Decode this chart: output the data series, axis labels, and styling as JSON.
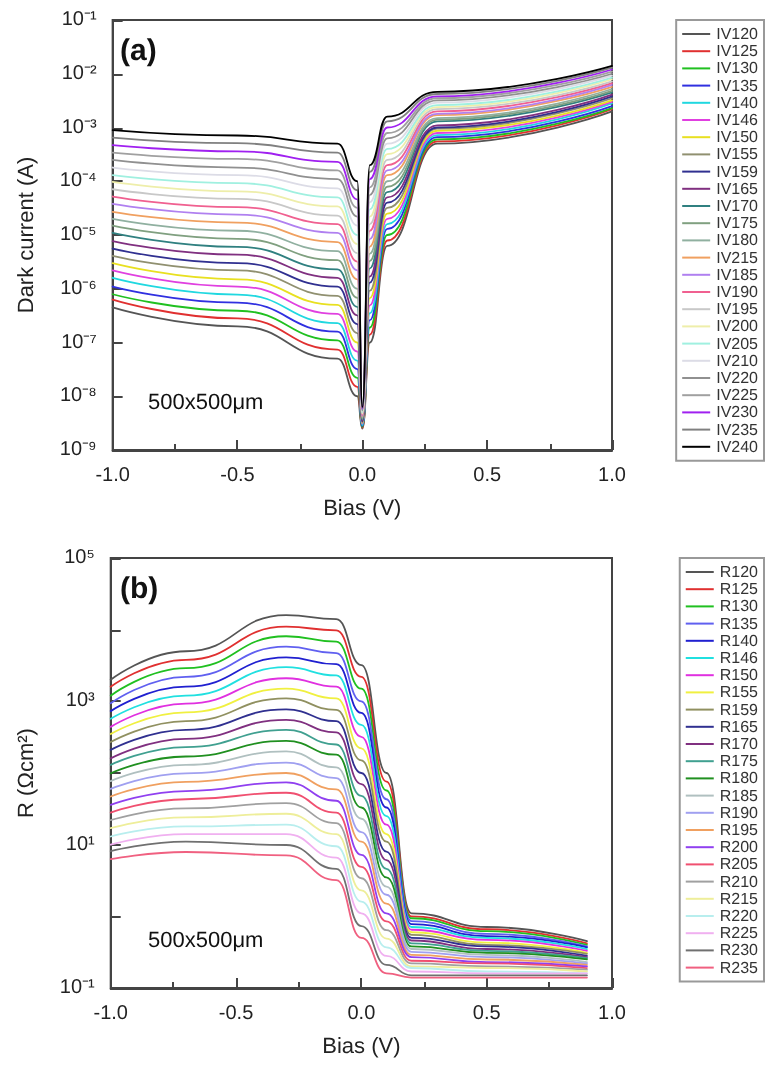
{
  "chart_data": [
    {
      "type": "line",
      "xlabel": "Bias (V)",
      "ylabel": "Dark current (A)",
      "annotations": [
        "(a)",
        "500x500μm"
      ],
      "log": "y",
      "grid": false,
      "legend": "right",
      "marker": "none",
      "line_style": "solid",
      "xlim": [
        -1,
        1
      ],
      "xticks": [
        {
          "value": -1,
          "label": "-1.0"
        },
        {
          "value": -0.5,
          "label": "-0.5"
        },
        {
          "value": 0,
          "label": "0.0"
        },
        {
          "value": 0.5,
          "label": "0.5"
        },
        {
          "value": 1,
          "label": "1.0"
        }
      ],
      "ylim": [
        1e-09,
        0.1
      ],
      "yticks": [
        {
          "value": 1e-09,
          "label": "10⁻⁹"
        },
        {
          "value": 1e-08,
          "label": "10⁻⁸"
        },
        {
          "value": 1e-07,
          "label": "10⁻⁷"
        },
        {
          "value": 1e-06,
          "label": "10⁻⁶"
        },
        {
          "value": 1e-05,
          "label": "10⁻⁵"
        },
        {
          "value": 0.0001,
          "label": "10⁻⁴"
        },
        {
          "value": 0.001,
          "label": "10⁻³"
        },
        {
          "value": 0.01,
          "label": "10⁻²"
        },
        {
          "value": 0.1,
          "label": "10⁻¹"
        }
      ],
      "x": [
        -1,
        -0.5,
        -0.1,
        -0.02,
        0,
        0.03,
        0.1,
        0.3,
        1.0
      ],
      "series": [
        {
          "name": "IV120",
          "color": "#555555",
          "values": [
            4.5e-07,
            2e-07,
            5e-08,
            1e-08,
            2.5e-09,
            1e-07,
            6.3e-06,
            0.0005,
            0.002
          ]
        },
        {
          "name": "IV125",
          "color": "#e03030",
          "values": [
            6.3e-07,
            2.8e-07,
            7.4e-08,
            1.5e-08,
            2.6e-09,
            1.4e-07,
            7.9e-06,
            0.00055,
            0.0022
          ]
        },
        {
          "name": "IV130",
          "color": "#20c020",
          "values": [
            7.9e-07,
            3.9e-07,
            1.1e-07,
            2.2e-08,
            2.7e-09,
            1.9e-07,
            1e-05,
            0.0006,
            0.0023
          ]
        },
        {
          "name": "IV135",
          "color": "#3030e0",
          "values": [
            1.1e-06,
            5.5e-07,
            1.6e-07,
            3.2e-08,
            2.8e-09,
            2.6e-07,
            1.3e-05,
            0.00066,
            0.0025
          ]
        },
        {
          "name": "IV140",
          "color": "#20d8e0",
          "values": [
            1.6e-06,
            7.8e-07,
            2.3e-07,
            4.6e-08,
            2.9e-09,
            3.5e-07,
            1.6e-05,
            0.00072,
            0.0028
          ]
        },
        {
          "name": "IV146",
          "color": "#e040e0",
          "values": [
            2.2e-06,
            1.1e-06,
            3.4e-07,
            6.8e-08,
            3.1e-09,
            4.9e-07,
            2e-05,
            0.00079,
            0.003
          ]
        },
        {
          "name": "IV150",
          "color": "#e8e020",
          "values": [
            3e-06,
            1.5e-06,
            5e-07,
            1e-07,
            3.2e-09,
            6.7e-07,
            2.5e-05,
            0.00087,
            0.0032
          ]
        },
        {
          "name": "IV155",
          "color": "#909070",
          "values": [
            4.1e-06,
            2.2e-06,
            7.4e-07,
            1.5e-07,
            3.3e-09,
            9.2e-07,
            3.2e-05,
            0.00095,
            0.0035
          ]
        },
        {
          "name": "IV159",
          "color": "#303090",
          "values": [
            5.6e-06,
            3e-06,
            1.1e-06,
            2.2e-07,
            3.4e-09,
            1.3e-06,
            4e-05,
            0.001,
            0.0038
          ]
        },
        {
          "name": "IV165",
          "color": "#803080",
          "values": [
            7.7e-06,
            4.3e-06,
            1.6e-06,
            3.2e-07,
            3.5e-09,
            1.7e-06,
            5e-05,
            0.0011,
            0.0041
          ]
        },
        {
          "name": "IV170",
          "color": "#308080",
          "values": [
            1.1e-05,
            6e-06,
            2.3e-06,
            4.6e-07,
            3.7e-09,
            2.4e-06,
            6.3e-05,
            0.0013,
            0.0045
          ]
        },
        {
          "name": "IV175",
          "color": "#80a080",
          "values": [
            1.5e-05,
            8.5e-06,
            3.4e-06,
            6.8e-07,
            3.8e-09,
            3.3e-06,
            7.9e-05,
            0.0014,
            0.0048
          ]
        },
        {
          "name": "IV180",
          "color": "#90b0a0",
          "values": [
            2e-05,
            1.2e-05,
            5e-06,
            1e-06,
            4e-09,
            4.5e-06,
            0.0001,
            0.0015,
            0.0052
          ]
        },
        {
          "name": "IV215",
          "color": "#f0a060",
          "values": [
            2.7e-05,
            1.7e-05,
            7.4e-06,
            1.5e-06,
            4.2e-09,
            6.1e-06,
            0.00013,
            0.0017,
            0.0057
          ]
        },
        {
          "name": "IV185",
          "color": "#b080f0",
          "values": [
            3.8e-05,
            2.4e-05,
            1.1e-05,
            2.2e-06,
            4.3e-09,
            8.4e-06,
            0.00016,
            0.0018,
            0.0062
          ]
        },
        {
          "name": "IV190",
          "color": "#f06090",
          "values": [
            5.2e-05,
            3.3e-05,
            1.6e-05,
            3.2e-06,
            4.5e-09,
            1.2e-05,
            0.0002,
            0.002,
            0.0067
          ]
        },
        {
          "name": "IV195",
          "color": "#c8c8c8",
          "values": [
            7.1e-05,
            4.7e-05,
            2.3e-05,
            4.6e-06,
            4.7e-09,
            1.6e-05,
            0.00025,
            0.0022,
            0.0072
          ]
        },
        {
          "name": "IV200",
          "color": "#eeeeaa",
          "values": [
            9.7e-05,
            6.5e-05,
            3.4e-05,
            6.8e-06,
            4.8e-09,
            2.2e-05,
            0.00032,
            0.0024,
            0.0079
          ]
        },
        {
          "name": "IV205",
          "color": "#a0f0e0",
          "values": [
            0.00013,
            9.2e-05,
            5e-05,
            1e-05,
            5e-09,
            3e-05,
            0.0004,
            0.0026,
            0.0085
          ]
        },
        {
          "name": "IV210",
          "color": "#dcdce6",
          "values": [
            0.00018,
            0.00013,
            7.4e-05,
            1.5e-05,
            5.2e-09,
            4.1e-05,
            0.0005,
            0.0029,
            0.0092
          ]
        },
        {
          "name": "IV220",
          "color": "#909090",
          "values": [
            0.00025,
            0.00018,
            0.00011,
            2.2e-05,
            5.4e-09,
            5.6e-05,
            0.00063,
            0.0032,
            0.01
          ]
        },
        {
          "name": "IV225",
          "color": "#a0a0a0",
          "values": [
            0.00034,
            0.00026,
            0.00016,
            3.2e-05,
            5.6e-09,
            7.7e-05,
            0.00079,
            0.0035,
            0.011
          ]
        },
        {
          "name": "IV230",
          "color": "#a020f0",
          "values": [
            0.00047,
            0.00036,
            0.00023,
            4.6e-05,
            5.8e-09,
            0.00011,
            0.001,
            0.0038,
            0.012
          ]
        },
        {
          "name": "IV235",
          "color": "#808080",
          "values": [
            0.00065,
            0.00051,
            0.00034,
            6.8e-05,
            6.1e-09,
            0.00015,
            0.0013,
            0.0042,
            0.013
          ]
        },
        {
          "name": "IV240",
          "color": "#000000",
          "values": [
            0.00089,
            0.00071,
            0.0005,
            0.0001,
            6.3e-09,
            0.0002,
            0.0016,
            0.0046,
            0.014
          ]
        }
      ]
    },
    {
      "type": "line",
      "xlabel": "Bias (V)",
      "ylabel": "R (Ωcm²)",
      "annotations": [
        "(b)",
        "500x500μm"
      ],
      "log": "y",
      "grid": false,
      "legend": "right",
      "marker": "none",
      "line_style": "solid",
      "xlim": [
        -1,
        1
      ],
      "xticks": [
        {
          "value": -1,
          "label": "-1.0"
        },
        {
          "value": -0.5,
          "label": "-0.5"
        },
        {
          "value": 0,
          "label": "0.0"
        },
        {
          "value": 0.5,
          "label": "0.5"
        },
        {
          "value": 1,
          "label": "1.0"
        }
      ],
      "ylim": [
        0.1,
        100000
      ],
      "yticks": [
        {
          "value": 0.1,
          "label": "10⁻¹"
        },
        {
          "value": 1,
          "label": null
        },
        {
          "value": 10,
          "label": "10¹"
        },
        {
          "value": 100,
          "label": null
        },
        {
          "value": 1000,
          "label": "10³"
        },
        {
          "value": 10000,
          "label": null
        },
        {
          "value": 100000,
          "label": "10⁵"
        }
      ],
      "x": [
        -1,
        -0.7,
        -0.3,
        -0.1,
        0,
        0.1,
        0.2,
        0.5,
        0.9
      ],
      "series": [
        {
          "name": "R120",
          "color": "#555555",
          "values": [
            2000,
            5000,
            16000,
            14000,
            3200,
            100,
            1.1,
            0.71,
            0.45
          ]
        },
        {
          "name": "R125",
          "color": "#e03030",
          "values": [
            1600,
            3800,
            11000,
            9800,
            2200,
            76,
            1.0,
            0.66,
            0.42
          ]
        },
        {
          "name": "R130",
          "color": "#20c020",
          "values": [
            1200,
            2900,
            8100,
            6800,
            1500,
            57,
            0.94,
            0.62,
            0.4
          ]
        },
        {
          "name": "R135",
          "color": "#6060f0",
          "values": [
            940,
            2200,
            5800,
            4700,
            1000,
            43,
            0.86,
            0.57,
            0.38
          ]
        },
        {
          "name": "R140",
          "color": "#2020d0",
          "values": [
            730,
            1600,
            4100,
            3300,
            690,
            33,
            0.78,
            0.53,
            0.37
          ]
        },
        {
          "name": "R146",
          "color": "#20e0e0",
          "values": [
            570,
            1200,
            3000,
            2300,
            470,
            25,
            0.71,
            0.5,
            0.35
          ]
        },
        {
          "name": "R150",
          "color": "#e030e0",
          "values": [
            440,
            930,
            2100,
            1600,
            320,
            19,
            0.65,
            0.47,
            0.33
          ]
        },
        {
          "name": "R155",
          "color": "#f0f040",
          "values": [
            350,
            700,
            1500,
            1100,
            220,
            14,
            0.6,
            0.43,
            0.31
          ]
        },
        {
          "name": "R159",
          "color": "#909060",
          "values": [
            270,
            530,
            1100,
            760,
            150,
            11,
            0.55,
            0.4,
            0.3
          ]
        },
        {
          "name": "R165",
          "color": "#303090",
          "values": [
            210,
            400,
            770,
            530,
            100,
            8.0,
            0.5,
            0.38,
            0.28
          ]
        },
        {
          "name": "R170",
          "color": "#803080",
          "values": [
            160,
            300,
            550,
            370,
            70,
            6.1,
            0.46,
            0.35,
            0.27
          ]
        },
        {
          "name": "R175",
          "color": "#40a090",
          "values": [
            130,
            230,
            400,
            250,
            48,
            4.6,
            0.42,
            0.33,
            0.26
          ]
        },
        {
          "name": "R180",
          "color": "#209020",
          "values": [
            99,
            170,
            280,
            180,
            33,
            3.5,
            0.38,
            0.31,
            0.25
          ]
        },
        {
          "name": "R185",
          "color": "#b0c0c0",
          "values": [
            77,
            130,
            200,
            120,
            23,
            2.6,
            0.35,
            0.29,
            0.23
          ]
        },
        {
          "name": "R190",
          "color": "#a0a0f0",
          "values": [
            60,
            99,
            140,
            85,
            15,
            2.0,
            0.32,
            0.27,
            0.22
          ]
        },
        {
          "name": "R195",
          "color": "#f0a060",
          "values": [
            47,
            75,
            100,
            59,
            11,
            1.5,
            0.29,
            0.25,
            0.21
          ]
        },
        {
          "name": "R200",
          "color": "#9040f0",
          "values": [
            36,
            56,
            74,
            41,
            7.2,
            1.1,
            0.27,
            0.23,
            0.2
          ]
        },
        {
          "name": "R205",
          "color": "#f05070",
          "values": [
            28,
            43,
            53,
            28,
            4.9,
            0.85,
            0.24,
            0.22,
            0.19
          ]
        },
        {
          "name": "R210",
          "color": "#a0a0a0",
          "values": [
            22,
            32,
            38,
            20,
            3.4,
            0.64,
            0.22,
            0.2,
            0.18
          ]
        },
        {
          "name": "R215",
          "color": "#eeee9a",
          "values": [
            17,
            24,
            27,
            14,
            2.3,
            0.49,
            0.2,
            0.19,
            0.17
          ]
        },
        {
          "name": "R220",
          "color": "#b8eeee",
          "values": [
            13,
            18,
            19,
            9.5,
            1.6,
            0.37,
            0.19,
            0.17,
            0.16
          ]
        },
        {
          "name": "R225",
          "color": "#f0b0f0",
          "values": [
            10,
            14,
            14,
            6.6,
            1.1,
            0.28,
            0.17,
            0.16,
            0.16
          ]
        },
        {
          "name": "R230",
          "color": "#707070",
          "values": [
            8.1,
            11,
            9.9,
            4.6,
            0.73,
            0.21,
            0.15,
            0.15,
            0.15
          ]
        },
        {
          "name": "R235",
          "color": "#f06080",
          "values": [
            6.3,
            7.9,
            7.1,
            3.2,
            0.5,
            0.16,
            0.14,
            0.14,
            0.14
          ]
        }
      ]
    }
  ]
}
